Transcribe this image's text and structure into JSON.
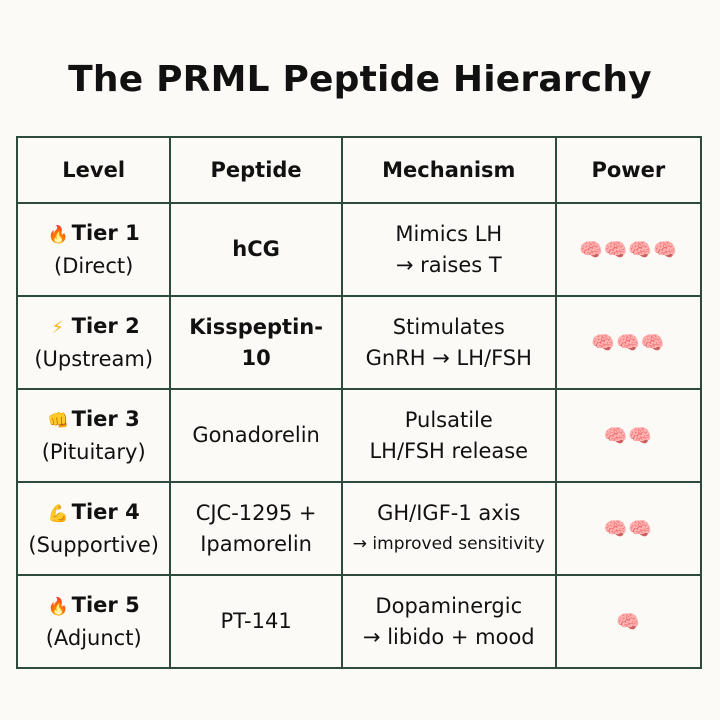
{
  "title": "The PRML Peptide Hierarchy",
  "headers": {
    "level": "Level",
    "peptide": "Peptide",
    "mechanism": "Mechanism",
    "power": "Power"
  },
  "rows": [
    {
      "icon": "fire-icon",
      "tier": "Tier 1",
      "sub": "(Direct)",
      "peptide_1": "hCG",
      "peptide_2": "",
      "mech_1": "Mimics LH",
      "mech_2": "→ raises T",
      "power": 4
    },
    {
      "icon": "lightning-icon",
      "tier": "Tier 2",
      "sub": "(Upstream)",
      "peptide_1": "Kisspeptin-10",
      "peptide_2": "",
      "mech_1": "Stimulates",
      "mech_2": "GnRH → LH/FSH",
      "power": 3
    },
    {
      "icon": "fist-icon",
      "tier": "Tier 3",
      "sub": "(Pituitary)",
      "peptide_1": "Gonadorelin",
      "peptide_2": "",
      "mech_1": "Pulsatile",
      "mech_2": "LH/FSH release",
      "power": 2
    },
    {
      "icon": "flexed-arm-icon",
      "tier": "Tier 4",
      "sub": "(Supportive)",
      "peptide_1": "CJC-1295 +",
      "peptide_2": "Ipamorelin",
      "mech_1": "GH/IGF-1 axis",
      "mech_2": "→ improved sensitivity",
      "power": 2
    },
    {
      "icon": "fire-icon",
      "tier": "Tier 5",
      "sub": "(Adjunct)",
      "peptide_1": "PT-141",
      "peptide_2": "",
      "mech_1": "Dopaminergic",
      "mech_2": "→ libido + mood",
      "power": 1
    }
  ]
}
